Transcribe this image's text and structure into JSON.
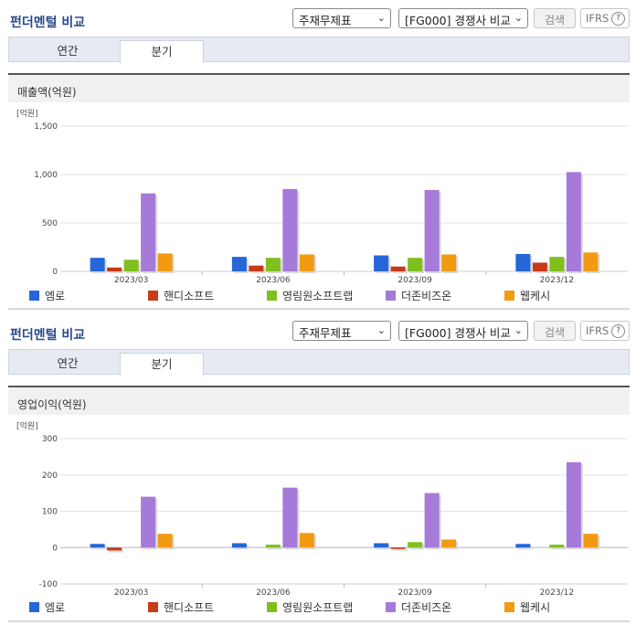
{
  "header": {
    "title": "펀더멘털 비교",
    "select_statement": "주재무제표",
    "select_compare": "[FG000] 경쟁사 비교",
    "search_label": "검색",
    "ifrs_label": "IFRS",
    "help_glyph": "?"
  },
  "tabs": [
    "연간",
    "분기"
  ],
  "active_tab": "분기",
  "legend": [
    {
      "name": "엠로",
      "color": "#2566d8"
    },
    {
      "name": "핸디소프트",
      "color": "#c83a18"
    },
    {
      "name": "영림원소프트랩",
      "color": "#7fbf1e"
    },
    {
      "name": "더존비즈온",
      "color": "#a57ad8"
    },
    {
      "name": "웹케시",
      "color": "#f29b12"
    }
  ],
  "chart_data": [
    {
      "type": "bar",
      "title": "매출액(억원)",
      "unit_label": "[억원]",
      "categories": [
        "2023/03",
        "2023/06",
        "2023/09",
        "2023/12"
      ],
      "ylim": [
        0,
        1500
      ],
      "yticks": [
        0,
        500,
        1000,
        1500
      ],
      "ytick_labels": [
        "0",
        "500",
        "1,000",
        "1,500"
      ],
      "series": [
        {
          "name": "엠로",
          "values": [
            140,
            150,
            165,
            180
          ]
        },
        {
          "name": "핸디소프트",
          "values": [
            40,
            60,
            50,
            90
          ]
        },
        {
          "name": "영림원소프트랩",
          "values": [
            120,
            140,
            140,
            150
          ]
        },
        {
          "name": "더존비즈온",
          "values": [
            805,
            850,
            840,
            1025
          ]
        },
        {
          "name": "웹케시",
          "values": [
            185,
            175,
            175,
            195
          ]
        }
      ],
      "legend_position": "bottom",
      "grid": true
    },
    {
      "type": "bar",
      "title": "영업이익(억원)",
      "unit_label": "[억원]",
      "categories": [
        "2023/03",
        "2023/06",
        "2023/09",
        "2023/12"
      ],
      "ylim": [
        -100,
        300
      ],
      "yticks": [
        -100,
        0,
        100,
        200,
        300
      ],
      "ytick_labels": [
        "-100",
        "0",
        "100",
        "200",
        "300"
      ],
      "series": [
        {
          "name": "엠로",
          "values": [
            10,
            12,
            12,
            10
          ]
        },
        {
          "name": "핸디소프트",
          "values": [
            -8,
            0,
            -4,
            0
          ]
        },
        {
          "name": "영림원소프트랩",
          "values": [
            0,
            8,
            15,
            8
          ]
        },
        {
          "name": "더존비즈온",
          "values": [
            140,
            165,
            150,
            235
          ]
        },
        {
          "name": "웹케시",
          "values": [
            38,
            40,
            22,
            38
          ]
        }
      ],
      "legend_position": "bottom",
      "grid": true
    }
  ]
}
